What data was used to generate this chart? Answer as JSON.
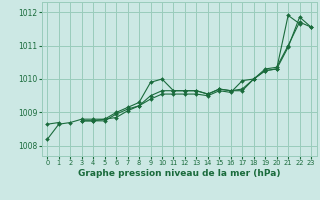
{
  "title": "Graphe pression niveau de la mer (hPa)",
  "bg_color": "#cce8e4",
  "grid_color": "#99ccbb",
  "line_color": "#1a6b3c",
  "ylim": [
    1007.7,
    1012.3
  ],
  "xlim": [
    -0.5,
    23.5
  ],
  "yticks": [
    1008,
    1009,
    1010,
    1011,
    1012
  ],
  "xticks": [
    0,
    1,
    2,
    3,
    4,
    5,
    6,
    7,
    8,
    9,
    10,
    11,
    12,
    13,
    14,
    15,
    16,
    17,
    18,
    19,
    20,
    21,
    22,
    23
  ],
  "series": [
    [
      1008.2,
      1008.65,
      1008.7,
      1008.8,
      1008.8,
      1008.8,
      1009.0,
      1009.15,
      1009.3,
      1009.9,
      1010.0,
      1009.65,
      1009.65,
      1009.65,
      1009.55,
      1009.7,
      1009.65,
      1009.7,
      1010.0,
      1010.25,
      1010.3,
      1011.9,
      1011.65,
      null
    ],
    [
      null,
      null,
      null,
      1008.75,
      1008.75,
      1008.8,
      1008.85,
      1009.05,
      1009.2,
      1009.5,
      1009.65,
      1009.65,
      1009.65,
      1009.65,
      1009.55,
      1009.7,
      1009.65,
      1009.65,
      1010.0,
      1010.3,
      1010.35,
      1011.0,
      1011.7,
      1011.55
    ],
    [
      null,
      null,
      null,
      1008.75,
      1008.75,
      1008.75,
      1008.95,
      1009.1,
      1009.2,
      1009.4,
      1009.55,
      1009.55,
      1009.55,
      1009.55,
      1009.5,
      1009.65,
      1009.6,
      1009.95,
      1010.0,
      1010.25,
      1010.3,
      1010.95,
      1011.85,
      1011.55
    ],
    [
      1008.65,
      1008.7,
      null,
      null,
      null,
      null,
      null,
      null,
      null,
      null,
      null,
      null,
      null,
      null,
      null,
      null,
      null,
      null,
      null,
      null,
      null,
      null,
      null,
      null
    ]
  ],
  "xlabel_fontsize": 6.5,
  "ylabel_fontsize": 5.5,
  "xtick_fontsize": 4.8,
  "ytick_fontsize": 5.5
}
